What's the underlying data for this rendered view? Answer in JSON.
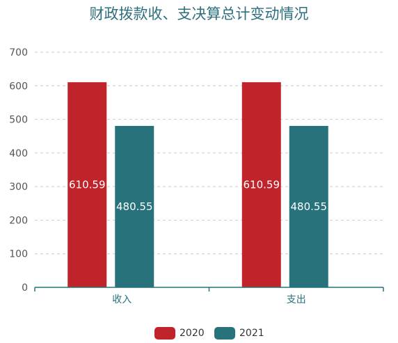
{
  "chart_data": {
    "type": "bar",
    "title": "财政拨款收、支决算总计变动情况",
    "categories": [
      "收入",
      "支出"
    ],
    "series": [
      {
        "name": "2020",
        "values": [
          610.59,
          610.59
        ],
        "color": "#c1232b"
      },
      {
        "name": "2021",
        "values": [
          480.55,
          480.55
        ],
        "color": "#27727b"
      }
    ],
    "ylim": [
      0,
      700
    ],
    "yticks": [
      0,
      100,
      200,
      300,
      400,
      500,
      600,
      700
    ],
    "grid": true,
    "legend_position": "bottom-center"
  }
}
